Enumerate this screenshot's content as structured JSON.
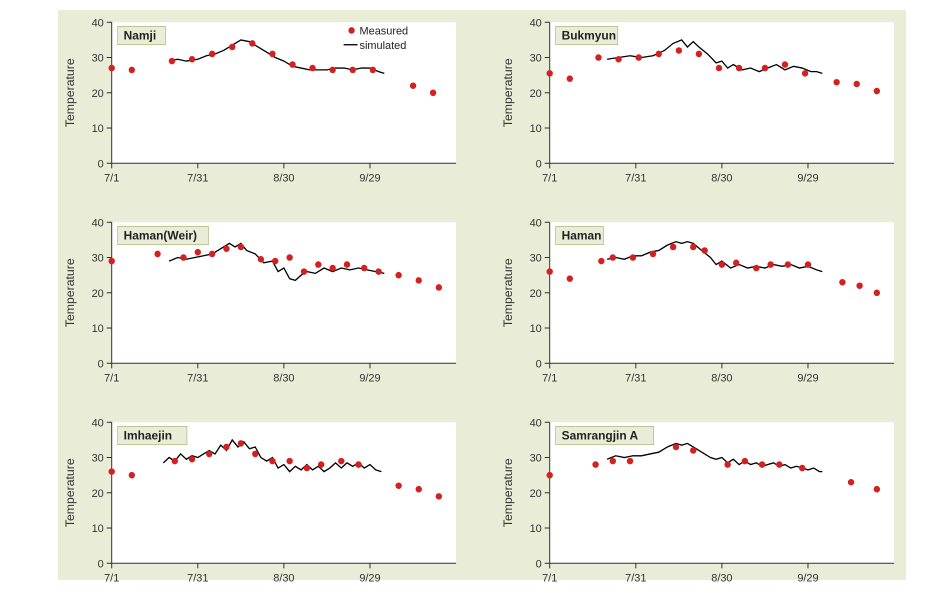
{
  "layout": {
    "cols": 2,
    "rows": 3,
    "background_color": "#e9ecd6",
    "plot_background": "#ffffff",
    "title_bg": "#e9ecd6",
    "title_border": "#9fb06a",
    "axis_color": "#333333",
    "tick_font_size": 11,
    "title_font_size": 12,
    "ylabel": "Temperature",
    "ylabel_font_size": 12,
    "ylim": [
      0,
      40
    ],
    "ytick_step": 10,
    "x_categories": [
      "7/1",
      "7/31",
      "8/30",
      "9/29"
    ],
    "x_max_days": 120,
    "legend_items": [
      {
        "label": "Measured",
        "type": "marker",
        "color": "#d42020"
      },
      {
        "label": "simulated",
        "type": "line",
        "color": "#000000"
      }
    ],
    "marker_radius": 3.2,
    "line_width": 1.3
  },
  "charts": [
    {
      "title": "Namji",
      "show_legend": true,
      "measured": [
        {
          "d": 0,
          "v": 27
        },
        {
          "d": 7,
          "v": 26.5
        },
        {
          "d": 21,
          "v": 29
        },
        {
          "d": 28,
          "v": 29.5
        },
        {
          "d": 35,
          "v": 31
        },
        {
          "d": 42,
          "v": 33
        },
        {
          "d": 49,
          "v": 34
        },
        {
          "d": 56,
          "v": 31
        },
        {
          "d": 63,
          "v": 28
        },
        {
          "d": 70,
          "v": 27
        },
        {
          "d": 77,
          "v": 26.5
        },
        {
          "d": 84,
          "v": 26.5
        },
        {
          "d": 91,
          "v": 26.5
        },
        {
          "d": 105,
          "v": 22
        },
        {
          "d": 112,
          "v": 20
        }
      ],
      "simulated": [
        {
          "d": 20,
          "v": 29
        },
        {
          "d": 23,
          "v": 29.5
        },
        {
          "d": 26,
          "v": 29
        },
        {
          "d": 30,
          "v": 29.5
        },
        {
          "d": 33,
          "v": 30.5
        },
        {
          "d": 36,
          "v": 31
        },
        {
          "d": 39,
          "v": 32
        },
        {
          "d": 42,
          "v": 33.5
        },
        {
          "d": 45,
          "v": 35
        },
        {
          "d": 48,
          "v": 34.5
        },
        {
          "d": 51,
          "v": 33
        },
        {
          "d": 54,
          "v": 31.5
        },
        {
          "d": 57,
          "v": 30
        },
        {
          "d": 60,
          "v": 29
        },
        {
          "d": 63,
          "v": 27.5
        },
        {
          "d": 66,
          "v": 27
        },
        {
          "d": 69,
          "v": 26.5
        },
        {
          "d": 72,
          "v": 26.5
        },
        {
          "d": 75,
          "v": 26.5
        },
        {
          "d": 78,
          "v": 27
        },
        {
          "d": 81,
          "v": 27
        },
        {
          "d": 84,
          "v": 26.5
        },
        {
          "d": 87,
          "v": 27
        },
        {
          "d": 90,
          "v": 27
        },
        {
          "d": 93,
          "v": 26
        },
        {
          "d": 95,
          "v": 25.5
        }
      ]
    },
    {
      "title": "Bukmyun",
      "show_legend": false,
      "measured": [
        {
          "d": 0,
          "v": 25.5
        },
        {
          "d": 7,
          "v": 24
        },
        {
          "d": 17,
          "v": 30
        },
        {
          "d": 24,
          "v": 29.5
        },
        {
          "d": 31,
          "v": 30
        },
        {
          "d": 38,
          "v": 31
        },
        {
          "d": 45,
          "v": 32
        },
        {
          "d": 52,
          "v": 31
        },
        {
          "d": 59,
          "v": 27
        },
        {
          "d": 66,
          "v": 27
        },
        {
          "d": 75,
          "v": 27
        },
        {
          "d": 82,
          "v": 28
        },
        {
          "d": 89,
          "v": 25.5
        },
        {
          "d": 100,
          "v": 23
        },
        {
          "d": 107,
          "v": 22.5
        },
        {
          "d": 114,
          "v": 20.5
        }
      ],
      "simulated": [
        {
          "d": 20,
          "v": 29.5
        },
        {
          "d": 24,
          "v": 30
        },
        {
          "d": 28,
          "v": 30.5
        },
        {
          "d": 32,
          "v": 30
        },
        {
          "d": 36,
          "v": 30.5
        },
        {
          "d": 40,
          "v": 32
        },
        {
          "d": 43,
          "v": 34
        },
        {
          "d": 46,
          "v": 35
        },
        {
          "d": 48,
          "v": 33
        },
        {
          "d": 50,
          "v": 34.5
        },
        {
          "d": 52,
          "v": 33
        },
        {
          "d": 55,
          "v": 31
        },
        {
          "d": 58,
          "v": 28.5
        },
        {
          "d": 60,
          "v": 29
        },
        {
          "d": 62,
          "v": 27
        },
        {
          "d": 64,
          "v": 28
        },
        {
          "d": 67,
          "v": 26.5
        },
        {
          "d": 70,
          "v": 27
        },
        {
          "d": 73,
          "v": 26
        },
        {
          "d": 76,
          "v": 27
        },
        {
          "d": 79,
          "v": 28
        },
        {
          "d": 82,
          "v": 26.5
        },
        {
          "d": 85,
          "v": 27.5
        },
        {
          "d": 88,
          "v": 27
        },
        {
          "d": 91,
          "v": 26
        },
        {
          "d": 93,
          "v": 26
        },
        {
          "d": 95,
          "v": 25.5
        }
      ]
    },
    {
      "title": "Haman(Weir)",
      "show_legend": false,
      "measured": [
        {
          "d": 0,
          "v": 29
        },
        {
          "d": 16,
          "v": 31
        },
        {
          "d": 25,
          "v": 30
        },
        {
          "d": 30,
          "v": 31.5
        },
        {
          "d": 35,
          "v": 31
        },
        {
          "d": 40,
          "v": 32.5
        },
        {
          "d": 45,
          "v": 33
        },
        {
          "d": 52,
          "v": 29.5
        },
        {
          "d": 57,
          "v": 29
        },
        {
          "d": 62,
          "v": 30
        },
        {
          "d": 67,
          "v": 26
        },
        {
          "d": 72,
          "v": 28
        },
        {
          "d": 77,
          "v": 27
        },
        {
          "d": 82,
          "v": 28
        },
        {
          "d": 88,
          "v": 27
        },
        {
          "d": 93,
          "v": 26
        },
        {
          "d": 100,
          "v": 25
        },
        {
          "d": 107,
          "v": 23.5
        },
        {
          "d": 114,
          "v": 21.5
        }
      ],
      "simulated": [
        {
          "d": 20,
          "v": 29
        },
        {
          "d": 23,
          "v": 30
        },
        {
          "d": 26,
          "v": 29.5
        },
        {
          "d": 29,
          "v": 30
        },
        {
          "d": 32,
          "v": 30.5
        },
        {
          "d": 35,
          "v": 31
        },
        {
          "d": 38,
          "v": 32.5
        },
        {
          "d": 41,
          "v": 34
        },
        {
          "d": 43,
          "v": 33
        },
        {
          "d": 45,
          "v": 34
        },
        {
          "d": 47,
          "v": 32
        },
        {
          "d": 50,
          "v": 31
        },
        {
          "d": 53,
          "v": 28.5
        },
        {
          "d": 56,
          "v": 29
        },
        {
          "d": 58,
          "v": 26
        },
        {
          "d": 60,
          "v": 27
        },
        {
          "d": 62,
          "v": 24
        },
        {
          "d": 64,
          "v": 23.5
        },
        {
          "d": 66,
          "v": 25
        },
        {
          "d": 68,
          "v": 26
        },
        {
          "d": 71,
          "v": 25.5
        },
        {
          "d": 74,
          "v": 27
        },
        {
          "d": 77,
          "v": 26
        },
        {
          "d": 80,
          "v": 27
        },
        {
          "d": 83,
          "v": 26.5
        },
        {
          "d": 86,
          "v": 27
        },
        {
          "d": 89,
          "v": 26.5
        },
        {
          "d": 92,
          "v": 26
        },
        {
          "d": 95,
          "v": 25.5
        }
      ]
    },
    {
      "title": "Haman",
      "show_legend": false,
      "measured": [
        {
          "d": 0,
          "v": 26
        },
        {
          "d": 7,
          "v": 24
        },
        {
          "d": 18,
          "v": 29
        },
        {
          "d": 22,
          "v": 30
        },
        {
          "d": 29,
          "v": 30
        },
        {
          "d": 36,
          "v": 31
        },
        {
          "d": 43,
          "v": 33
        },
        {
          "d": 50,
          "v": 33
        },
        {
          "d": 54,
          "v": 32
        },
        {
          "d": 60,
          "v": 28
        },
        {
          "d": 65,
          "v": 28.5
        },
        {
          "d": 72,
          "v": 27
        },
        {
          "d": 77,
          "v": 28
        },
        {
          "d": 83,
          "v": 28
        },
        {
          "d": 90,
          "v": 28
        },
        {
          "d": 102,
          "v": 23
        },
        {
          "d": 108,
          "v": 22
        },
        {
          "d": 114,
          "v": 20
        }
      ],
      "simulated": [
        {
          "d": 20,
          "v": 29.5
        },
        {
          "d": 23,
          "v": 30
        },
        {
          "d": 26,
          "v": 29.5
        },
        {
          "d": 29,
          "v": 30.5
        },
        {
          "d": 32,
          "v": 30.5
        },
        {
          "d": 35,
          "v": 31.5
        },
        {
          "d": 38,
          "v": 32
        },
        {
          "d": 41,
          "v": 33.5
        },
        {
          "d": 44,
          "v": 34.5
        },
        {
          "d": 46,
          "v": 34
        },
        {
          "d": 48,
          "v": 34.5
        },
        {
          "d": 50,
          "v": 34
        },
        {
          "d": 53,
          "v": 32
        },
        {
          "d": 56,
          "v": 30
        },
        {
          "d": 58,
          "v": 28
        },
        {
          "d": 60,
          "v": 29
        },
        {
          "d": 63,
          "v": 27
        },
        {
          "d": 66,
          "v": 28
        },
        {
          "d": 69,
          "v": 27
        },
        {
          "d": 72,
          "v": 27.5
        },
        {
          "d": 75,
          "v": 27
        },
        {
          "d": 78,
          "v": 28
        },
        {
          "d": 81,
          "v": 27.5
        },
        {
          "d": 84,
          "v": 28
        },
        {
          "d": 87,
          "v": 27
        },
        {
          "d": 90,
          "v": 27.5
        },
        {
          "d": 93,
          "v": 26.5
        },
        {
          "d": 95,
          "v": 26
        }
      ]
    },
    {
      "title": "Imhaejin",
      "show_legend": false,
      "measured": [
        {
          "d": 0,
          "v": 26
        },
        {
          "d": 7,
          "v": 25
        },
        {
          "d": 22,
          "v": 29
        },
        {
          "d": 28,
          "v": 29.5
        },
        {
          "d": 34,
          "v": 31
        },
        {
          "d": 40,
          "v": 33
        },
        {
          "d": 45,
          "v": 34
        },
        {
          "d": 50,
          "v": 31
        },
        {
          "d": 56,
          "v": 29
        },
        {
          "d": 62,
          "v": 29
        },
        {
          "d": 68,
          "v": 27
        },
        {
          "d": 73,
          "v": 28
        },
        {
          "d": 80,
          "v": 29
        },
        {
          "d": 86,
          "v": 28
        },
        {
          "d": 100,
          "v": 22
        },
        {
          "d": 107,
          "v": 21
        },
        {
          "d": 114,
          "v": 19
        }
      ],
      "simulated": [
        {
          "d": 18,
          "v": 28.5
        },
        {
          "d": 20,
          "v": 30
        },
        {
          "d": 22,
          "v": 29
        },
        {
          "d": 24,
          "v": 31
        },
        {
          "d": 26,
          "v": 29.5
        },
        {
          "d": 28,
          "v": 30.5
        },
        {
          "d": 30,
          "v": 30
        },
        {
          "d": 32,
          "v": 31
        },
        {
          "d": 34,
          "v": 32
        },
        {
          "d": 36,
          "v": 31
        },
        {
          "d": 38,
          "v": 33.5
        },
        {
          "d": 40,
          "v": 32
        },
        {
          "d": 42,
          "v": 35
        },
        {
          "d": 44,
          "v": 33
        },
        {
          "d": 46,
          "v": 34.5
        },
        {
          "d": 48,
          "v": 32.5
        },
        {
          "d": 50,
          "v": 33
        },
        {
          "d": 52,
          "v": 30
        },
        {
          "d": 54,
          "v": 29
        },
        {
          "d": 56,
          "v": 30
        },
        {
          "d": 58,
          "v": 27
        },
        {
          "d": 60,
          "v": 28
        },
        {
          "d": 62,
          "v": 26
        },
        {
          "d": 64,
          "v": 27.5
        },
        {
          "d": 66,
          "v": 26.5
        },
        {
          "d": 68,
          "v": 28
        },
        {
          "d": 70,
          "v": 26.5
        },
        {
          "d": 72,
          "v": 27.5
        },
        {
          "d": 74,
          "v": 26
        },
        {
          "d": 76,
          "v": 27
        },
        {
          "d": 78,
          "v": 28.5
        },
        {
          "d": 80,
          "v": 27
        },
        {
          "d": 82,
          "v": 28.5
        },
        {
          "d": 84,
          "v": 27.5
        },
        {
          "d": 86,
          "v": 28.5
        },
        {
          "d": 88,
          "v": 27
        },
        {
          "d": 90,
          "v": 28
        },
        {
          "d": 92,
          "v": 26.5
        },
        {
          "d": 94,
          "v": 26
        }
      ]
    },
    {
      "title": "Samrangjin A",
      "show_legend": false,
      "measured": [
        {
          "d": 0,
          "v": 25
        },
        {
          "d": 16,
          "v": 28
        },
        {
          "d": 22,
          "v": 29
        },
        {
          "d": 28,
          "v": 29
        },
        {
          "d": 44,
          "v": 33
        },
        {
          "d": 50,
          "v": 32
        },
        {
          "d": 62,
          "v": 28
        },
        {
          "d": 68,
          "v": 29
        },
        {
          "d": 74,
          "v": 28
        },
        {
          "d": 80,
          "v": 28
        },
        {
          "d": 88,
          "v": 27
        },
        {
          "d": 105,
          "v": 23
        },
        {
          "d": 114,
          "v": 21
        }
      ],
      "simulated": [
        {
          "d": 20,
          "v": 29.5
        },
        {
          "d": 23,
          "v": 30.5
        },
        {
          "d": 26,
          "v": 30
        },
        {
          "d": 29,
          "v": 30.5
        },
        {
          "d": 32,
          "v": 30.5
        },
        {
          "d": 35,
          "v": 31
        },
        {
          "d": 38,
          "v": 31.5
        },
        {
          "d": 41,
          "v": 33
        },
        {
          "d": 44,
          "v": 34
        },
        {
          "d": 46,
          "v": 33.5
        },
        {
          "d": 48,
          "v": 34
        },
        {
          "d": 50,
          "v": 33
        },
        {
          "d": 53,
          "v": 31.5
        },
        {
          "d": 56,
          "v": 30
        },
        {
          "d": 58,
          "v": 29.5
        },
        {
          "d": 60,
          "v": 30
        },
        {
          "d": 62,
          "v": 28.5
        },
        {
          "d": 64,
          "v": 29.5
        },
        {
          "d": 66,
          "v": 28
        },
        {
          "d": 68,
          "v": 29
        },
        {
          "d": 70,
          "v": 28
        },
        {
          "d": 72,
          "v": 28.5
        },
        {
          "d": 74,
          "v": 27.5
        },
        {
          "d": 76,
          "v": 28
        },
        {
          "d": 78,
          "v": 28.5
        },
        {
          "d": 80,
          "v": 27.5
        },
        {
          "d": 82,
          "v": 28
        },
        {
          "d": 84,
          "v": 27
        },
        {
          "d": 86,
          "v": 27.5
        },
        {
          "d": 88,
          "v": 27
        },
        {
          "d": 90,
          "v": 26.5
        },
        {
          "d": 92,
          "v": 27
        },
        {
          "d": 94,
          "v": 26
        },
        {
          "d": 95,
          "v": 26
        }
      ]
    }
  ]
}
